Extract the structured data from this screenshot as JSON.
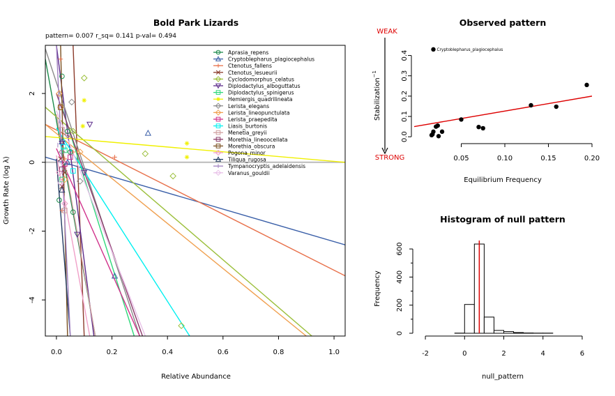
{
  "chart_data": [
    {
      "type": "line",
      "title": "Bold Park Lizards",
      "subtitle": "pattern= 0.007 r_sq= 0.141 p-val= 0.494",
      "xlabel": "Relative Abundance",
      "ylabel": "Growth Rate (log λ)",
      "xlim": [
        -0.04,
        1.04
      ],
      "ylim": [
        -5.05,
        3.4
      ],
      "x_ticks": [
        0.0,
        0.2,
        0.4,
        0.6,
        0.8,
        1.0
      ],
      "x_tick_labels": [
        "0.0",
        "0.2",
        "0.4",
        "0.6",
        "0.8",
        "1.0"
      ],
      "y_ticks": [
        -4,
        -2,
        0,
        2
      ],
      "y_tick_labels": [
        "-4",
        "-2",
        "0",
        "2"
      ],
      "reference_line_y": 0,
      "legend_position": "top-right",
      "series": [
        {
          "name": "Aprasia_repens",
          "color": "#1b8a4a",
          "marker": "o",
          "line": [
            [
              -0.04,
              3.0
            ],
            [
              0.14,
              -5.05
            ]
          ],
          "points": [
            [
              0.01,
              -1.1
            ],
            [
              0.02,
              2.5
            ],
            [
              0.04,
              0.9
            ],
            [
              0.06,
              -1.45
            ],
            [
              0.05,
              0.3
            ]
          ]
        },
        {
          "name": "Cryptoblepharus_plagiocephalus",
          "color": "#3a5fa8",
          "marker": "^",
          "line": [
            [
              -0.04,
              0.15
            ],
            [
              1.04,
              -2.4
            ]
          ],
          "points": [
            [
              0.33,
              0.85
            ],
            [
              0.21,
              -3.3
            ],
            [
              0.02,
              0.6
            ],
            [
              0.04,
              0.0
            ]
          ]
        },
        {
          "name": "Ctenotus_fallens",
          "color": "#e8704a",
          "marker": "+",
          "line": [
            [
              -0.04,
              1.1
            ],
            [
              1.04,
              -3.3
            ]
          ],
          "points": [
            [
              0.21,
              0.15
            ],
            [
              0.015,
              3.0
            ],
            [
              0.03,
              0.1
            ],
            [
              0.02,
              -1.4
            ],
            [
              0.06,
              0.3
            ]
          ]
        },
        {
          "name": "Ctenotus_lesueurii",
          "color": "#8b3a2a",
          "marker": "x",
          "line": [
            [
              0.06,
              3.4
            ],
            [
              0.1,
              -5.05
            ]
          ],
          "points": [
            [
              0.02,
              -0.7
            ],
            [
              0.03,
              -0.3
            ],
            [
              0.015,
              0.1
            ]
          ]
        },
        {
          "name": "Cyclodomorphus_celatus",
          "color": "#9bbf3a",
          "marker": "D",
          "line": [
            [
              -0.04,
              1.6
            ],
            [
              0.92,
              -5.05
            ]
          ],
          "points": [
            [
              0.1,
              2.45
            ],
            [
              0.32,
              0.25
            ],
            [
              0.42,
              -0.4
            ],
            [
              0.45,
              -4.75
            ],
            [
              0.06,
              0.9
            ]
          ]
        },
        {
          "name": "Diplodactylus_alboguttatus",
          "color": "#5b2a8a",
          "marker": "v",
          "line": [
            [
              0.0,
              3.4
            ],
            [
              0.135,
              -5.05
            ]
          ],
          "points": [
            [
              0.12,
              1.1
            ],
            [
              0.1,
              -0.3
            ],
            [
              0.075,
              -2.1
            ],
            [
              0.02,
              0.55
            ]
          ]
        },
        {
          "name": "Diplodactylus_spinigerus",
          "color": "#2ed87a",
          "marker": "s",
          "line": [
            [
              0.02,
              1.6
            ],
            [
              0.28,
              -5.05
            ]
          ],
          "points": [
            [
              0.03,
              0.35
            ],
            [
              0.02,
              -0.5
            ]
          ]
        },
        {
          "name": "Hemiergis_quadrilineata",
          "color": "#f0f000",
          "marker": "*",
          "line": [
            [
              -0.04,
              0.75
            ],
            [
              1.04,
              0.0
            ]
          ],
          "points": [
            [
              0.47,
              0.55
            ],
            [
              0.47,
              0.15
            ],
            [
              0.1,
              1.8
            ],
            [
              0.095,
              1.05
            ]
          ]
        },
        {
          "name": "Lerista_elegans",
          "color": "#8a8a8a",
          "marker": "D",
          "line": [
            [
              -0.04,
              3.3
            ],
            [
              0.3,
              -5.05
            ]
          ],
          "points": [
            [
              0.055,
              1.75
            ],
            [
              0.085,
              -0.55
            ],
            [
              0.04,
              0.8
            ],
            [
              0.02,
              0.3
            ]
          ]
        },
        {
          "name": "Lerista_lineopunctulata",
          "color": "#f0a050",
          "marker": "D",
          "line": [
            [
              -0.04,
              1.1
            ],
            [
              0.9,
              -5.05
            ]
          ],
          "points": [
            [
              0.085,
              0.3
            ],
            [
              0.015,
              1.6
            ],
            [
              0.01,
              2.0
            ],
            [
              0.03,
              -0.5
            ]
          ]
        },
        {
          "name": "Lerista_praepedita",
          "color": "#d0308a",
          "marker": "s",
          "line": [
            [
              0.0,
              0.4
            ],
            [
              0.3,
              -5.05
            ]
          ],
          "points": [
            [
              0.05,
              0.15
            ],
            [
              0.03,
              -0.05
            ]
          ]
        },
        {
          "name": "Liasis_burtonis",
          "color": "#00f0f0",
          "marker": "s",
          "line": [
            [
              0.0,
              1.0
            ],
            [
              0.48,
              -5.05
            ]
          ],
          "points": [
            [
              0.06,
              -0.25
            ],
            [
              0.025,
              0.45
            ]
          ]
        },
        {
          "name": "Menetia_greyii",
          "color": "#d0a0a0",
          "marker": "s",
          "line": [
            [
              0.0,
              1.4
            ],
            [
              0.14,
              -5.05
            ]
          ],
          "points": [
            [
              0.03,
              -1.4
            ],
            [
              0.02,
              0.95
            ]
          ]
        },
        {
          "name": "Morethia_lineoocellata",
          "color": "#8a3a6a",
          "marker": "s",
          "line": [
            [
              0.0,
              2.0
            ],
            [
              0.31,
              -5.05
            ]
          ],
          "points": [
            [
              0.02,
              -0.2
            ]
          ]
        },
        {
          "name": "Morethia_obscura",
          "color": "#7a5020",
          "marker": "s",
          "line": [
            [
              0.015,
              3.4
            ],
            [
              0.04,
              -5.05
            ]
          ],
          "points": [
            [
              0.015,
              1.6
            ]
          ]
        },
        {
          "name": "Pogona_minor",
          "color": "#f0a0c8",
          "marker": "D",
          "line": [
            [
              0.0,
              0.2
            ],
            [
              0.12,
              -5.05
            ]
          ],
          "points": [
            [
              0.01,
              -0.3
            ],
            [
              0.03,
              -1.2
            ]
          ]
        },
        {
          "name": "Tiliqua_rugosa",
          "color": "#203a60",
          "marker": "^",
          "line": [
            [
              0.0,
              0.1
            ],
            [
              0.05,
              -5.05
            ]
          ],
          "points": [
            [
              0.02,
              -0.8
            ]
          ]
        },
        {
          "name": "Tympanocryptis_adelaidensis",
          "color": "#a080c0",
          "marker": "|",
          "line": [
            [
              0.0,
              3.4
            ],
            [
              0.05,
              -5.05
            ]
          ],
          "points": [
            [
              0.005,
              0.5
            ],
            [
              0.01,
              1.2
            ]
          ]
        },
        {
          "name": "Varanus_gouldii",
          "color": "#e8c0e8",
          "marker": "D",
          "line": [
            [
              0.0,
              1.5
            ],
            [
              0.32,
              -5.05
            ]
          ],
          "points": [
            [
              0.02,
              0.0
            ],
            [
              0.015,
              -0.6
            ]
          ]
        }
      ]
    },
    {
      "type": "scatter",
      "title": "Observed pattern",
      "xlabel": "Equilibrium Frequency",
      "ylabel": "Stabilization",
      "ylabel_superscript": "−1",
      "xlim": [
        -0.004,
        0.2
      ],
      "ylim": [
        -0.02,
        0.45
      ],
      "x_ticks": [
        0.05,
        0.1,
        0.15,
        0.2
      ],
      "x_tick_labels": [
        "0.05",
        "0.10",
        "0.15",
        "0.20"
      ],
      "y_ticks": [
        0.0,
        0.1,
        0.2,
        0.3,
        0.4
      ],
      "y_tick_labels": [
        "0.0",
        "0.1",
        "0.2",
        "0.3",
        "0.4"
      ],
      "top_label": "WEAK",
      "bottom_label": "STRONG",
      "annotation": {
        "label": "Cryptoblepharus_plagiocephalus",
        "x": 0.018,
        "y": 0.43
      },
      "points": [
        {
          "x": 0.018,
          "y": 0.43
        },
        {
          "x": 0.016,
          "y": 0.008
        },
        {
          "x": 0.017,
          "y": 0.012
        },
        {
          "x": 0.018,
          "y": 0.025
        },
        {
          "x": 0.021,
          "y": 0.05
        },
        {
          "x": 0.023,
          "y": 0.055
        },
        {
          "x": 0.024,
          "y": 0.003
        },
        {
          "x": 0.028,
          "y": 0.025
        },
        {
          "x": 0.05,
          "y": 0.085
        },
        {
          "x": 0.07,
          "y": 0.048
        },
        {
          "x": 0.075,
          "y": 0.042
        },
        {
          "x": 0.13,
          "y": 0.155
        },
        {
          "x": 0.159,
          "y": 0.148
        },
        {
          "x": 0.194,
          "y": 0.255
        }
      ],
      "fit_line": [
        [
          -0.004,
          0.05
        ],
        [
          0.2,
          0.2
        ]
      ],
      "fit_color": "#dd0000"
    },
    {
      "type": "bar",
      "title": "Histogram of null pattern",
      "xlabel": "null_pattern",
      "ylabel": "Frequency",
      "xlim": [
        -2.5,
        6.5
      ],
      "ylim": [
        0,
        660
      ],
      "x_ticks": [
        -2,
        0,
        2,
        4,
        6
      ],
      "x_tick_labels": [
        "-2",
        "0",
        "2",
        "4",
        "6"
      ],
      "y_ticks": [
        0,
        200,
        400,
        600
      ],
      "y_tick_labels": [
        "0",
        "200",
        "400",
        "600"
      ],
      "bin_edges": [
        -2,
        -1.5,
        -1,
        -0.5,
        0,
        0.5,
        1,
        1.5,
        2,
        2.5,
        3,
        3.5,
        4,
        4.5,
        5,
        5.5,
        6
      ],
      "values": [
        0,
        0,
        0,
        1,
        205,
        635,
        115,
        20,
        12,
        5,
        2,
        1,
        1,
        0,
        0,
        0
      ],
      "observed_line_x": 0.75,
      "observed_color": "#dd0000"
    }
  ]
}
